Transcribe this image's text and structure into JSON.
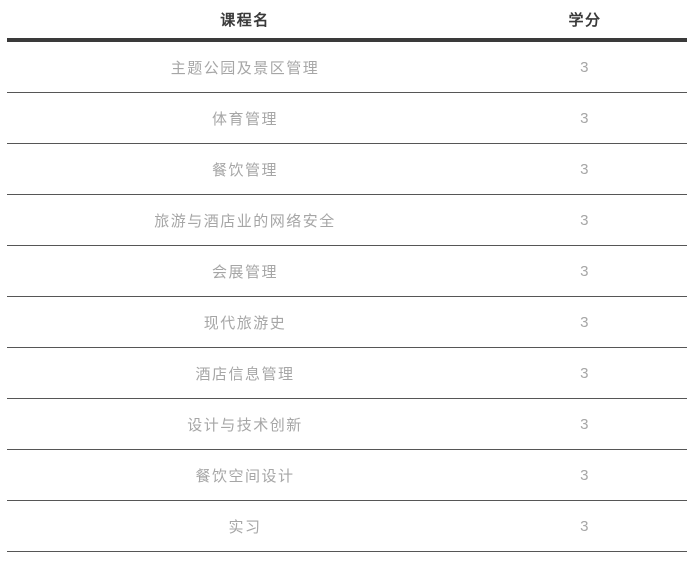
{
  "table": {
    "columns": [
      {
        "key": "course",
        "label": "课程名"
      },
      {
        "key": "credits",
        "label": "学分"
      }
    ],
    "rows": [
      {
        "course": "主题公园及景区管理",
        "credits": "3"
      },
      {
        "course": "体育管理",
        "credits": "3"
      },
      {
        "course": "餐饮管理",
        "credits": "3"
      },
      {
        "course": "旅游与酒店业的网络安全",
        "credits": "3"
      },
      {
        "course": "会展管理",
        "credits": "3"
      },
      {
        "course": "现代旅游史",
        "credits": "3"
      },
      {
        "course": "酒店信息管理",
        "credits": "3"
      },
      {
        "course": "设计与技术创新",
        "credits": "3"
      },
      {
        "course": "餐饮空间设计",
        "credits": "3"
      },
      {
        "course": "实习",
        "credits": "3"
      }
    ]
  },
  "colors": {
    "background": "#ffffff",
    "header_text": "#3a3a3a",
    "row_text": "#a6a6a6",
    "thick_border": "#3a3a3a",
    "thin_border": "#565656"
  }
}
